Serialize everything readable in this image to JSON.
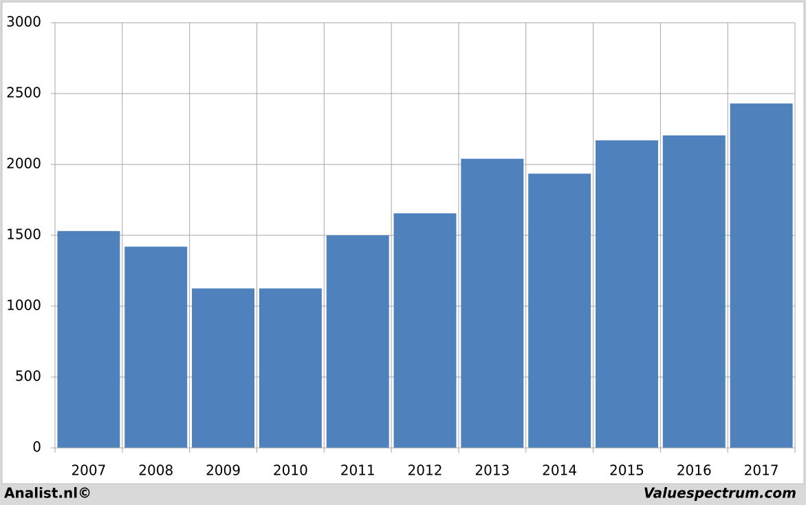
{
  "chart_data": {
    "type": "bar",
    "categories": [
      "2007",
      "2008",
      "2009",
      "2010",
      "2011",
      "2012",
      "2013",
      "2014",
      "2015",
      "2016",
      "2017"
    ],
    "values": [
      1530,
      1420,
      1125,
      1125,
      1500,
      1655,
      2040,
      1935,
      2170,
      2205,
      2430
    ],
    "color": "#4f81bd",
    "ylim": [
      0,
      3000
    ],
    "yticks": [
      0,
      500,
      1000,
      1500,
      2000,
      2500,
      3000
    ],
    "grid": true,
    "source_left": "Analist.nl©",
    "source_right": "Valuespectrum.com"
  }
}
